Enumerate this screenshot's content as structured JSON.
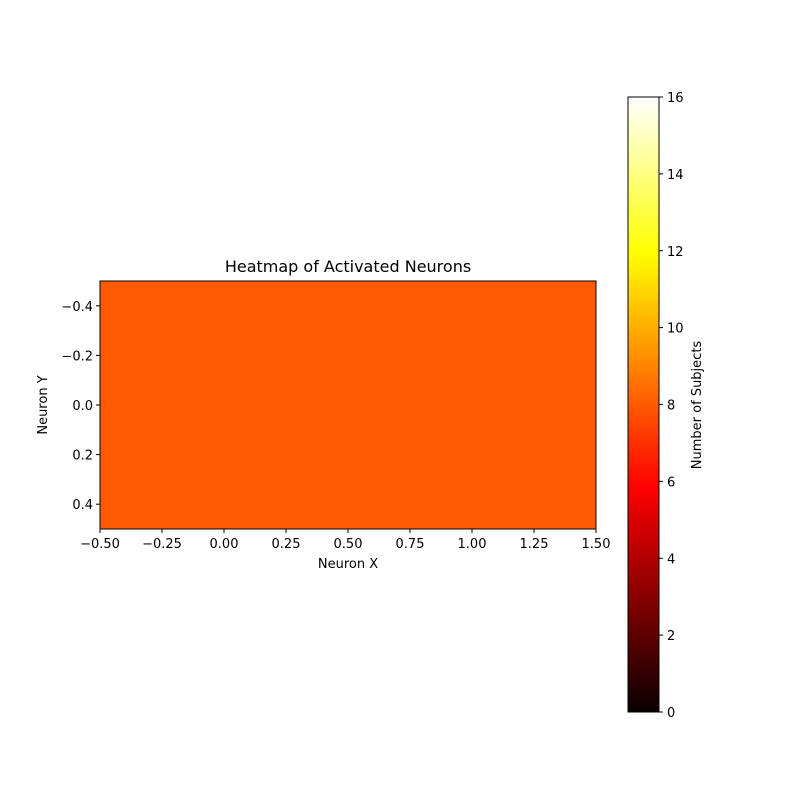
{
  "chart_data": {
    "type": "heatmap",
    "title": "Heatmap of Activated Neurons",
    "xlabel": "Neuron X",
    "ylabel": "Neuron Y",
    "xlim": [
      -0.5,
      1.5
    ],
    "ylim": [
      0.5,
      -0.5
    ],
    "x_ticks": [
      "−0.50",
      "−0.25",
      "0.00",
      "0.25",
      "0.50",
      "0.75",
      "1.00",
      "1.25",
      "1.50"
    ],
    "y_ticks": [
      "−0.4",
      "−0.2",
      "0.0",
      "0.2",
      "0.4"
    ],
    "cells": [
      {
        "x": 0,
        "y": 0,
        "value": 8
      },
      {
        "x": 1,
        "y": 0,
        "value": 8
      }
    ],
    "colorbar": {
      "label": "Number of Subjects",
      "range": [
        0,
        16
      ],
      "ticks": [
        "0",
        "2",
        "4",
        "6",
        "8",
        "10",
        "12",
        "14",
        "16"
      ],
      "colormap": "hot"
    },
    "grid": false
  }
}
